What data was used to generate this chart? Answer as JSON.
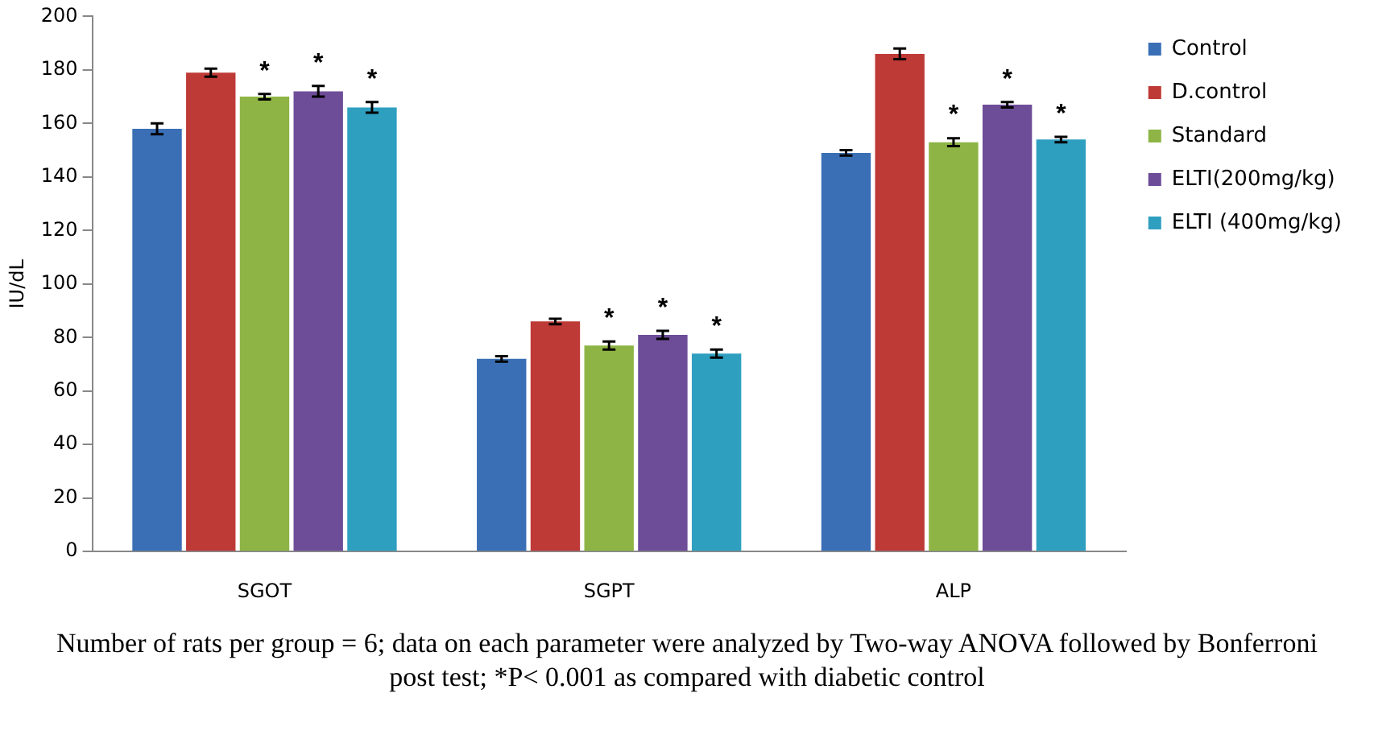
{
  "chart_data": {
    "type": "bar",
    "ylabel": "IU/dL",
    "categories": [
      "SGOT",
      "SGPT",
      "ALP"
    ],
    "series": [
      {
        "name": "Control",
        "color": "#3a6fb6",
        "values": [
          158,
          72,
          149
        ],
        "errors": [
          2,
          1,
          1
        ]
      },
      {
        "name": "D.control",
        "color": "#be3a36",
        "values": [
          179,
          86,
          186
        ],
        "errors": [
          1.5,
          1,
          2
        ]
      },
      {
        "name": "Standard",
        "color": "#8db444",
        "values": [
          170,
          77,
          153
        ],
        "errors": [
          1,
          1.5,
          1.5
        ],
        "value_labels": [
          "*",
          "*",
          "*"
        ]
      },
      {
        "name": "ELTI(200mg/kg)",
        "color": "#6d4d98",
        "values": [
          172,
          81,
          167
        ],
        "errors": [
          2,
          1.5,
          1
        ],
        "value_labels": [
          "*",
          "*",
          "*"
        ]
      },
      {
        "name": "ELTI (400mg/kg)",
        "color": "#2f9fc0",
        "values": [
          166,
          74,
          154
        ],
        "errors": [
          2,
          1.5,
          1
        ],
        "value_labels": [
          "*",
          "*",
          "*"
        ]
      }
    ],
    "ylim": [
      0,
      200
    ],
    "yticks": [
      0,
      20,
      40,
      60,
      80,
      100,
      120,
      140,
      160,
      180,
      200
    ],
    "grid": false,
    "legend": "right",
    "annotations": [
      "Number of rats per group = 6; data on each parameter were analyzed by Two-way ANOVA followed by Bonferroni post test; *P< 0.001 as compared with diabetic control"
    ]
  }
}
